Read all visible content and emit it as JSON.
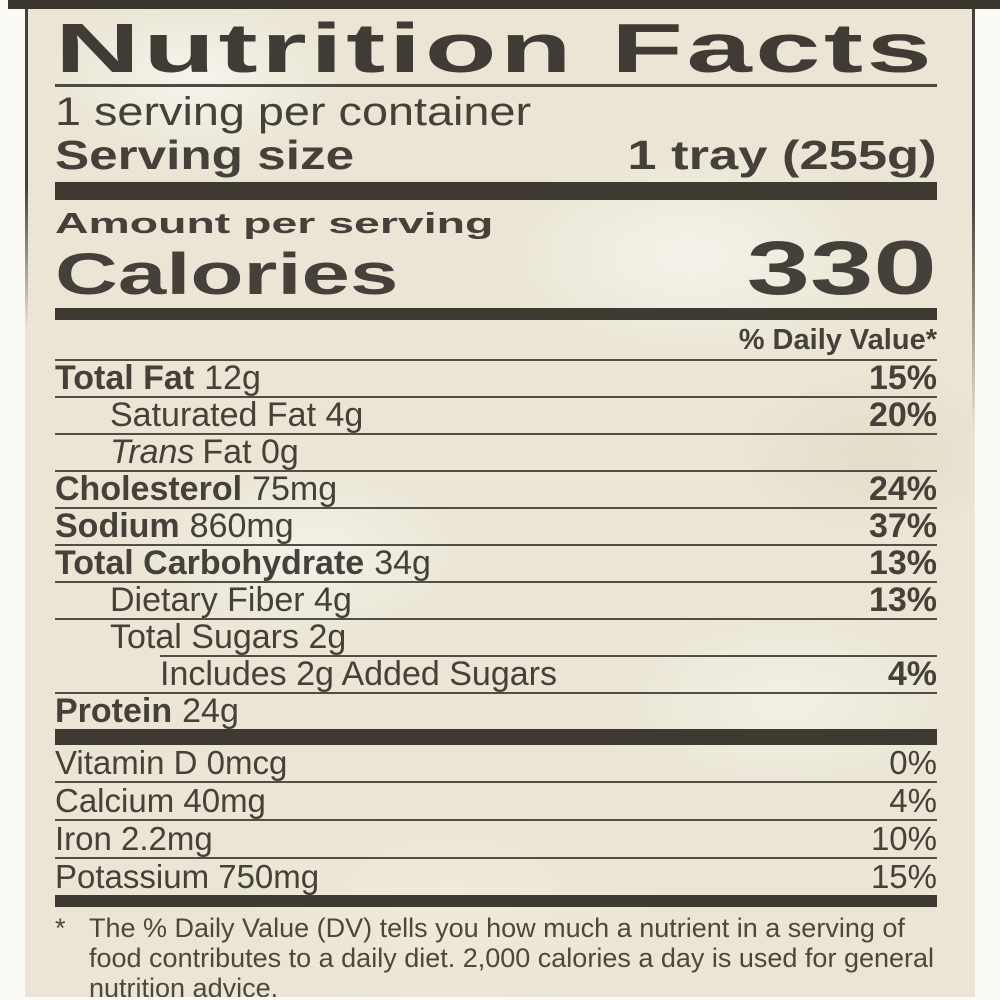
{
  "colors": {
    "paper": "#eae5d4",
    "ink": "#45413a",
    "bar": "#3e3a32",
    "rule": "#524e45",
    "page_bg": "#fbfaf5"
  },
  "label": {
    "title": "Nutrition Facts",
    "servings_per_container": "1 serving per container",
    "serving_size_label": "Serving size",
    "serving_size_value": "1 tray (255g)",
    "amount_per_serving": "Amount per serving",
    "calories_label": "Calories",
    "calories_value": "330",
    "daily_value_header": "% Daily Value*",
    "nutrients": [
      {
        "name_bold": "Total Fat",
        "amount": "12g",
        "dv": "15%"
      },
      {
        "name": "Saturated Fat 4g",
        "dv": "20%"
      },
      {
        "name_italic": "Trans",
        "name": "Fat 0g",
        "dv": ""
      },
      {
        "name_bold": "Cholesterol",
        "amount": "75mg",
        "dv": "24%"
      },
      {
        "name_bold": "Sodium",
        "amount": "860mg",
        "dv": "37%"
      },
      {
        "name_bold": "Total Carbohydrate",
        "amount": "34g",
        "dv": "13%"
      },
      {
        "name": "Dietary Fiber 4g",
        "dv": "13%"
      },
      {
        "name": "Total Sugars 2g",
        "dv": ""
      },
      {
        "name": "Includes 2g Added Sugars",
        "dv": "4%"
      },
      {
        "name_bold": "Protein",
        "amount": "24g",
        "dv": ""
      }
    ],
    "minerals": [
      {
        "name": "Vitamin D 0mcg",
        "dv": "0%"
      },
      {
        "name": "Calcium 40mg",
        "dv": "4%"
      },
      {
        "name": "Iron 2.2mg",
        "dv": "10%"
      },
      {
        "name": "Potassium 750mg",
        "dv": "15%"
      }
    ],
    "footnote_marker": "*",
    "footnote": "The % Daily Value (DV) tells you how much a nutrient in a serving of food contributes to a daily diet. 2,000 calories a day is used for general nutrition advice."
  }
}
